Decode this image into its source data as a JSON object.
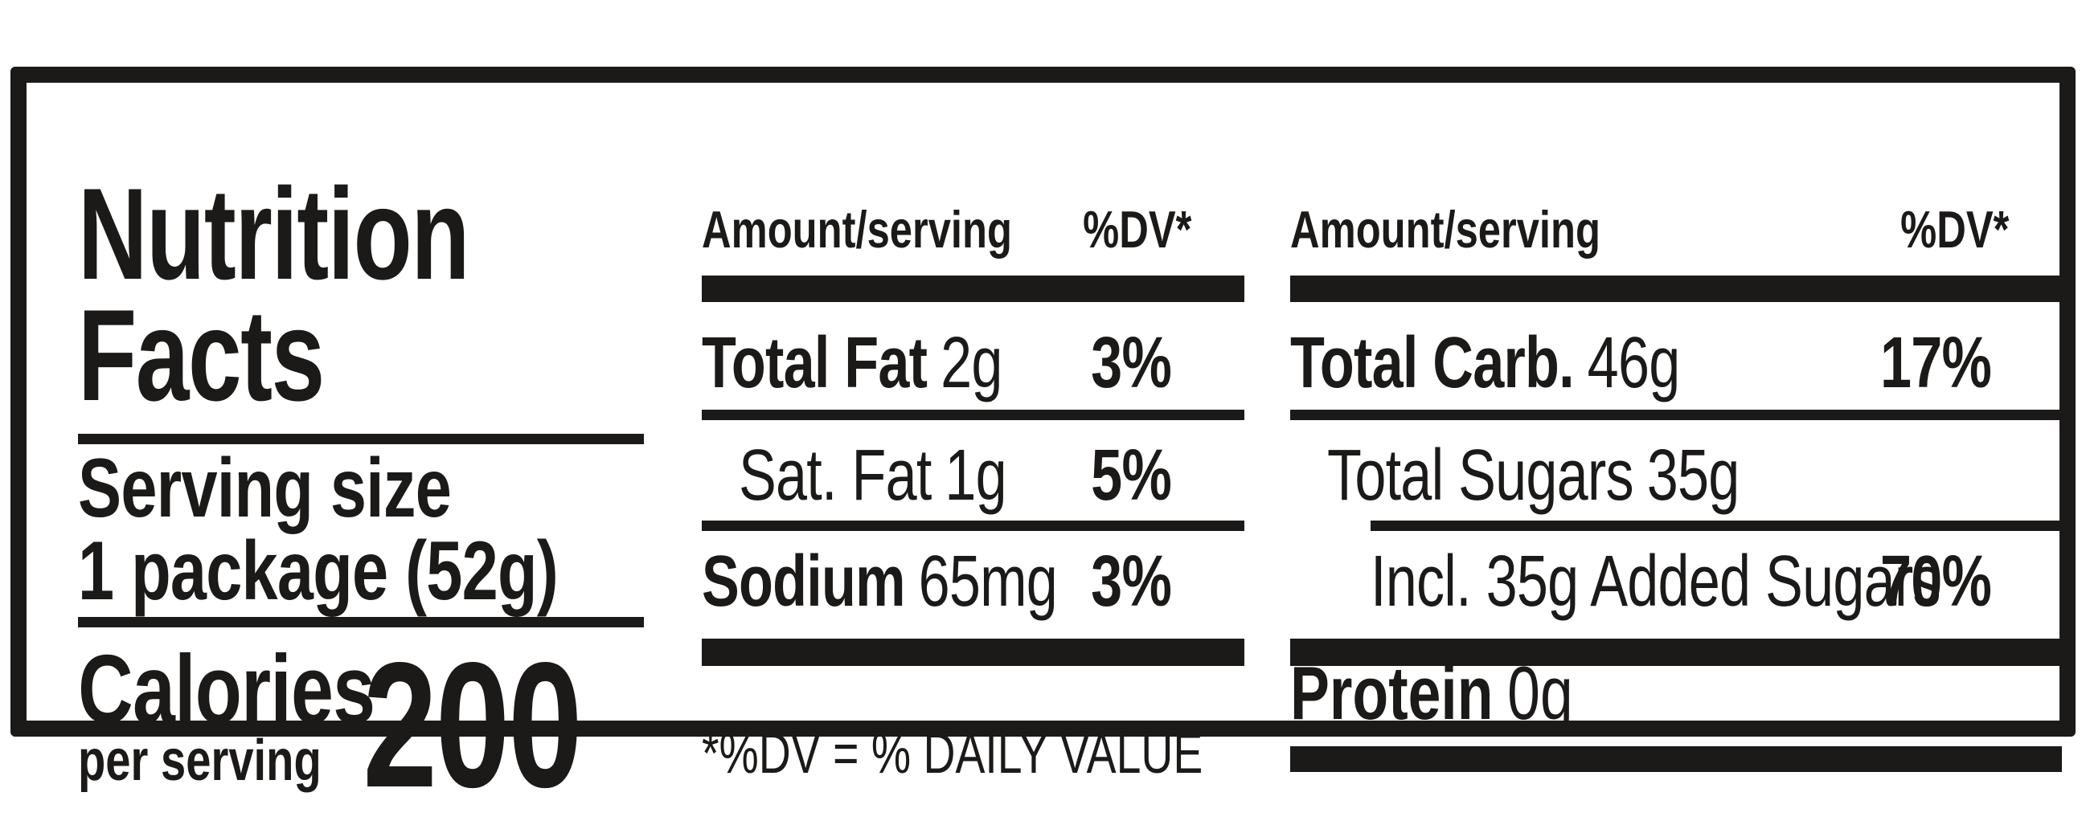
{
  "colors": {
    "ink": "#1c1a18",
    "background": "#ffffff"
  },
  "label": {
    "title": {
      "line1": "Nutrition",
      "line2": "Facts"
    },
    "serving": {
      "label": "Serving size",
      "value": "1 package (52g)"
    },
    "calories": {
      "label": "Calories",
      "per": "per serving",
      "value": "200"
    },
    "middle_column": {
      "header": {
        "amount_label": "Amount/serving",
        "dv_label": "%DV*"
      },
      "rows": [
        {
          "name": "Total Fat",
          "amount": "2g",
          "dv": "3%"
        },
        {
          "name": "Sat. Fat",
          "amount": "1g",
          "dv": "5%"
        },
        {
          "name": "Sodium",
          "amount": "65mg",
          "dv": "3%"
        }
      ],
      "footnote": "*%DV = % DAILY VALUE"
    },
    "right_column": {
      "header": {
        "amount_label": "Amount/serving",
        "dv_label": "%DV*"
      },
      "rows": [
        {
          "name": "Total Carb.",
          "amount": "46g",
          "dv": "17%"
        },
        {
          "name": "Total Sugars",
          "amount": "35g",
          "dv": ""
        },
        {
          "name": "Incl. 35g Added Sugars",
          "amount": "",
          "dv": "70%"
        },
        {
          "name": "Protein",
          "amount": "0g",
          "dv": ""
        }
      ]
    }
  }
}
